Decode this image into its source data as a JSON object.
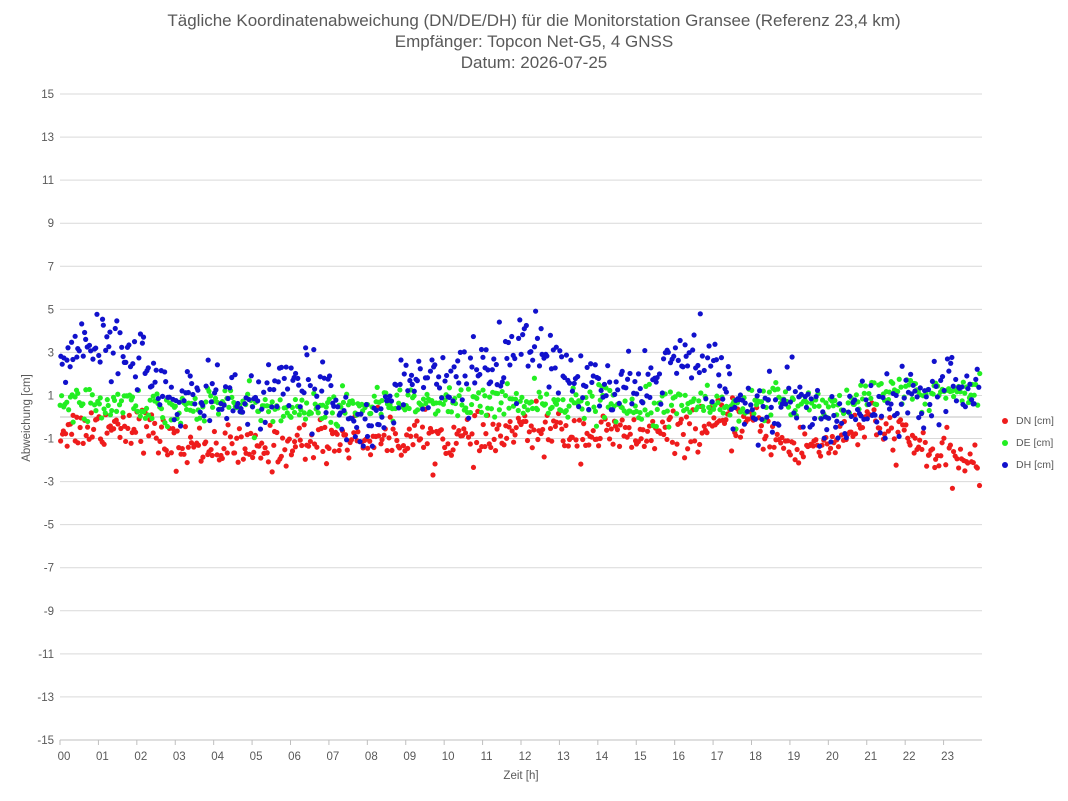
{
  "chart_data": {
    "type": "scatter",
    "title": "Tägliche Koordinatenabweichung (DN/DE/DH) für die Monitorstation Gransee (Referenz 23,4 km)",
    "subtitle_1": "Empfänger: Topcon Net-G5, 4 GNSS",
    "subtitle_2": "Datum: 2026-07-25",
    "xlabel": "Zeit [h]",
    "ylabel": "Abweichung [cm]",
    "xlim": [
      0,
      24
    ],
    "ylim": [
      -15,
      15
    ],
    "x_ticks": [
      "00",
      "01",
      "02",
      "03",
      "04",
      "05",
      "06",
      "07",
      "08",
      "09",
      "10",
      "11",
      "12",
      "13",
      "14",
      "15",
      "16",
      "17",
      "18",
      "19",
      "20",
      "21",
      "22",
      "23"
    ],
    "y_ticks": [
      "15",
      "13",
      "11",
      "9",
      "7",
      "5",
      "3",
      "1",
      "-1",
      "-3",
      "-5",
      "-7",
      "-9",
      "-11",
      "-13",
      "-15"
    ],
    "grid": true,
    "legend_position": "right",
    "samples_per_hour": 24,
    "series": [
      {
        "name": "DN [cm]",
        "color": "#ee1c1c",
        "hourly_mean": [
          -0.6,
          -0.4,
          -0.3,
          -1.4,
          -1.3,
          -1.6,
          -1.3,
          -1.0,
          -1.0,
          -0.9,
          -1.0,
          -1.1,
          -0.6,
          -0.7,
          -0.8,
          -0.9,
          -0.8,
          -0.4,
          -0.2,
          -1.5,
          -1.2,
          -0.3,
          -1.0,
          -2.0
        ],
        "spread": 0.9
      },
      {
        "name": "DE [cm]",
        "color": "#22ee22",
        "hourly_mean": [
          0.7,
          0.8,
          0.5,
          0.4,
          0.7,
          0.6,
          0.3,
          0.4,
          0.6,
          0.5,
          0.7,
          0.6,
          0.8,
          0.6,
          0.7,
          0.5,
          0.9,
          0.5,
          0.5,
          0.8,
          0.6,
          0.9,
          1.2,
          1.1
        ],
        "spread": 0.7
      },
      {
        "name": "DH [cm]",
        "color": "#1111cc",
        "hourly_mean": [
          2.6,
          3.5,
          3.0,
          0.4,
          1.2,
          0.7,
          1.3,
          1.4,
          -0.8,
          1.8,
          1.9,
          2.0,
          3.5,
          2.3,
          1.1,
          1.4,
          2.6,
          2.4,
          0.2,
          0.9,
          -0.4,
          0.6,
          1.0,
          1.6
        ],
        "spread": 1.3
      }
    ]
  }
}
